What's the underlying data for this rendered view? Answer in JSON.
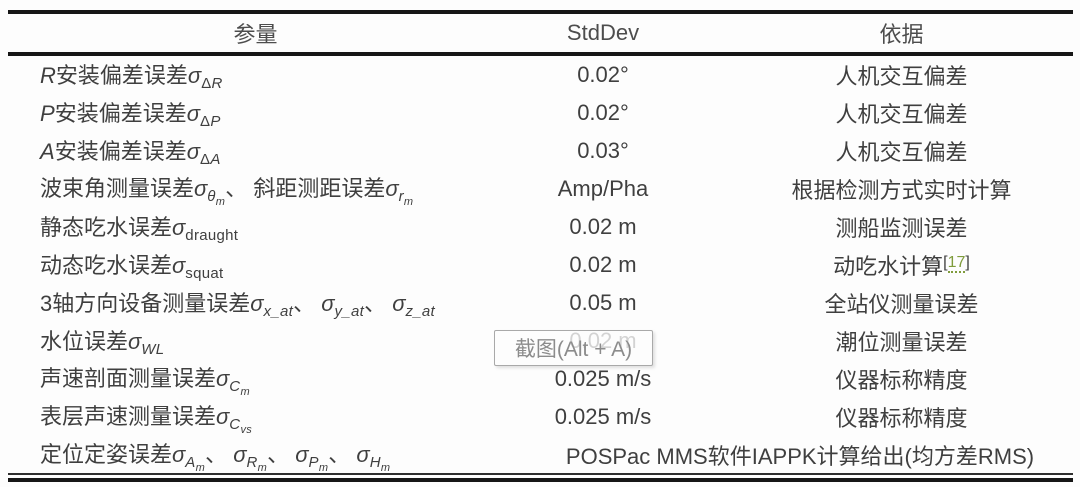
{
  "table": {
    "headers": {
      "param": "参量",
      "stddev": "StdDev",
      "basis": "依据"
    },
    "rows": [
      {
        "param": "<i>R</i>安装偏差误差<i>σ</i><span class='s1'>Δ<i>R</i></span>",
        "stddev": "0.02°",
        "basis": "人机交互偏差"
      },
      {
        "param": "<i>P</i>安装偏差误差<i>σ</i><span class='s1'>Δ<i>P</i></span>",
        "stddev": "0.02°",
        "basis": "人机交互偏差"
      },
      {
        "param": "<i>A</i>安装偏差误差<i>σ</i><span class='s1'>Δ<i>A</i></span>",
        "stddev": "0.03°",
        "basis": "人机交互偏差"
      },
      {
        "param": "波束角测量误差<i>σ</i><span class='s1'><i>θ</i><span class='s2'><i>m</i></span></span>、 斜距测距误差<i>σ</i><span class='s1'><i>r</i><span class='s2'><i>m</i></span></span>",
        "stddev": "Amp/Pha",
        "basis": "根据检测方式实时计算"
      },
      {
        "param": "静态吃水误差<i>σ</i><span class='s1'>draught</span>",
        "stddev": "0.02 m",
        "basis": "测船监测误差"
      },
      {
        "param": "动态吃水误差<i>σ</i><span class='s1'>squat</span>",
        "stddev": "0.02 m",
        "basis": "动吃水计算<sup class='cite'>[<span class='cite-num' data-name='citation-link-17' data-interactable='true'>17</span>]</sup>"
      },
      {
        "param": "3轴方向设备测量误差<i>σ</i><span class='s1'><i>x_at</i></span>、 <i>σ</i><span class='s1'><i>y_at</i></span>、 <i>σ</i><span class='s1'><i>z_at</i></span>",
        "stddev": "0.05 m",
        "basis": "全站仪测量误差"
      },
      {
        "param": "水位误差<i>σ</i><span class='s1'><i>WL</i></span>",
        "stddev": "0.02 m",
        "basis": "潮位测量误差"
      },
      {
        "param": "声速剖面测量误差<i>σ</i><span class='s1'><i>C</i><span class='s2'><i>m</i></span></span>",
        "stddev": "0.025 m/s",
        "basis": "仪器标称精度"
      },
      {
        "param": "表层声速测量误差<i>σ</i><span class='s1'><i>C</i><span class='s2'><i>vs</i></span></span>",
        "stddev": "0.025 m/s",
        "basis": "仪器标称精度"
      },
      {
        "param": "定位定姿误差<i>σ</i><span class='s1'><i>A</i><span class='s2'><i>m</i></span></span>、 <i>σ</i><span class='s1'><i>R</i><span class='s2'><i>m</i></span></span>、 <i>σ</i><span class='s1'><i>P</i><span class='s2'><i>m</i></span></span>、 <i>σ</i><span class='s1'><i>H</i><span class='s2'><i>m</i></span></span>",
        "span": "POSPac MMS软件IAPPK计算给出(均方差RMS)"
      }
    ]
  },
  "tooltip": {
    "label": "截图(Alt + A)"
  },
  "colors": {
    "citation_green": "#7f9c3c",
    "rule_black": "#161616",
    "text": "#3f3f3f",
    "tooltip_text": "#8c8c8c"
  }
}
